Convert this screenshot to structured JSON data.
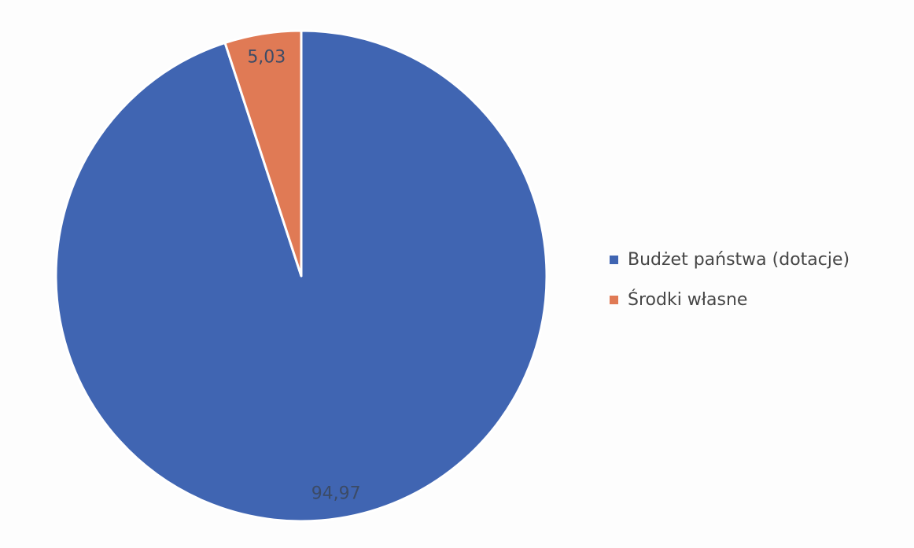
{
  "chart_data": {
    "type": "pie",
    "title": "",
    "start_angle_deg": 0,
    "direction": "clockwise",
    "slices": [
      {
        "name": "Budżet państwa (dotacje)",
        "value": 94.97,
        "label": "94,97",
        "color": "#4065b2"
      },
      {
        "name": "Środki własne",
        "value": 5.03,
        "label": "5,03",
        "color": "#e07a55"
      }
    ],
    "legend": {
      "placement": "right",
      "entries": [
        {
          "label": "Budżet państwa (dotacje)",
          "color": "#4065b2"
        },
        {
          "label": "Środki własne",
          "color": "#e07a55"
        }
      ]
    }
  }
}
